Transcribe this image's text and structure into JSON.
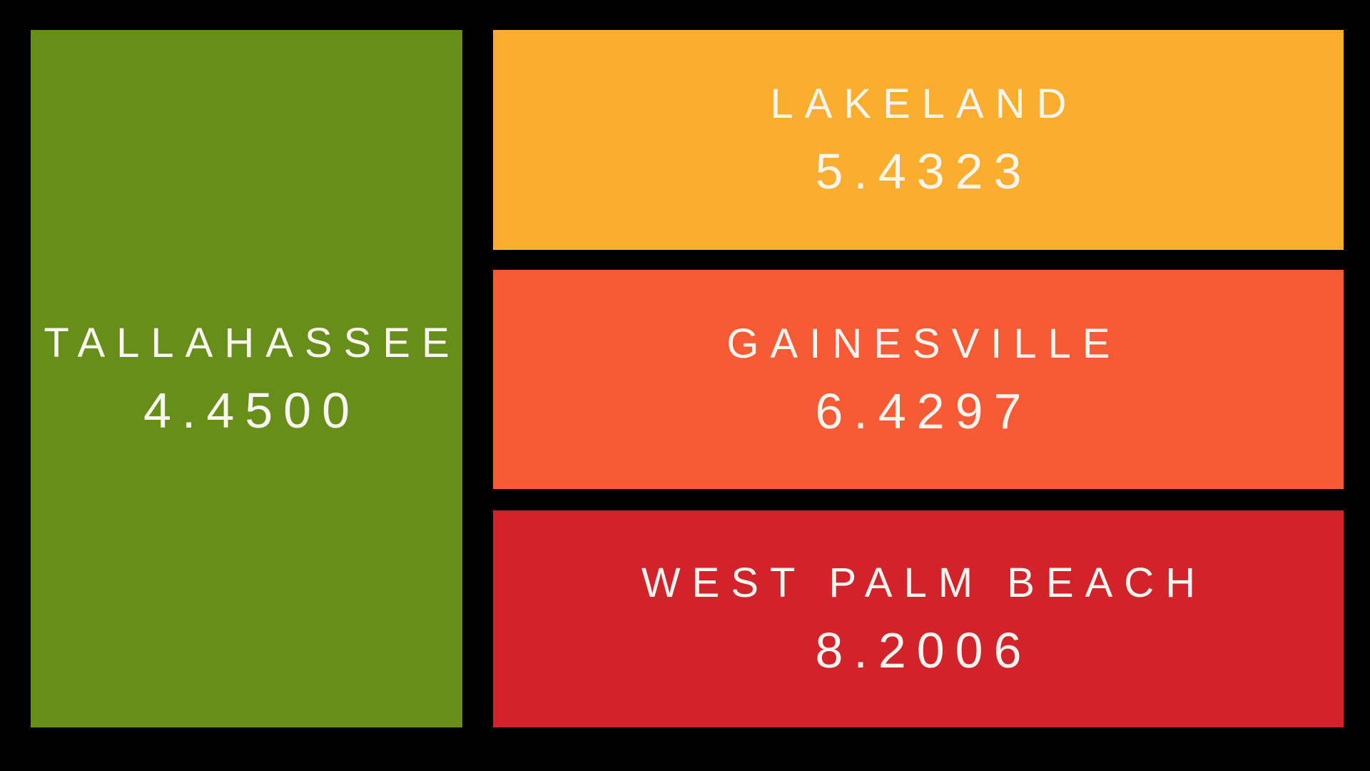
{
  "background_color": "#000000",
  "text_color": "#F9F6F1",
  "chart_data": {
    "type": "treemap",
    "title": "",
    "categories": [
      "TALLAHASSEE",
      "LAKELAND",
      "GAINESVILLE",
      "WEST PALM BEACH"
    ],
    "values": [
      4.45,
      5.4323,
      6.4297,
      8.2006
    ],
    "value_labels": [
      "4.4500",
      "5.4323",
      "6.4297",
      "8.2006"
    ],
    "colors": [
      "#688E1A",
      "#FBAD2E",
      "#F85B33",
      "#D2222A"
    ],
    "legend_position": "none",
    "grid": false,
    "layout_hint": "one large tile on the left, column of three equal tiles on the right, black gutters between tiles"
  },
  "tiles": [
    {
      "name": "TALLAHASSEE",
      "value": "4.4500",
      "color": "#688E1A"
    },
    {
      "name": "LAKELAND",
      "value": "5.4323",
      "color": "#FBAD2E"
    },
    {
      "name": "GAINESVILLE",
      "value": "6.4297",
      "color": "#F85B33"
    },
    {
      "name": "WEST PALM BEACH",
      "value": "8.2006",
      "color": "#D2222A"
    }
  ]
}
